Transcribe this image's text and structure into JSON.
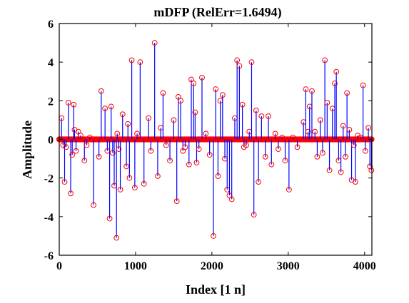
{
  "chart_data": {
    "type": "stem",
    "title": "mDFP (RelErr=1.6494)",
    "xlabel": "Index [1 n]",
    "ylabel": "Amplitude",
    "xlim": [
      0,
      4096
    ],
    "ylim": [
      -6,
      6
    ],
    "xticks": [
      0,
      1000,
      2000,
      3000,
      4000
    ],
    "yticks": [
      -6,
      -4,
      -2,
      0,
      2,
      4,
      6
    ],
    "grid": false,
    "colors": {
      "stem": "#0000ff",
      "marker": "#ff0000",
      "axis": "#000000"
    },
    "series": [
      {
        "marker": "circle",
        "points": [
          [
            30,
            1.1
          ],
          [
            50,
            -0.3
          ],
          [
            70,
            -2.2
          ],
          [
            90,
            -0.4
          ],
          [
            120,
            1.9
          ],
          [
            150,
            -2.8
          ],
          [
            170,
            -0.8
          ],
          [
            190,
            1.8
          ],
          [
            200,
            0.5
          ],
          [
            220,
            -0.6
          ],
          [
            250,
            0.4
          ],
          [
            280,
            0.2
          ],
          [
            330,
            -1.1
          ],
          [
            360,
            -0.3
          ],
          [
            400,
            0.1
          ],
          [
            450,
            -3.4
          ],
          [
            520,
            -0.9
          ],
          [
            550,
            2.5
          ],
          [
            600,
            1.6
          ],
          [
            630,
            -0.6
          ],
          [
            660,
            -4.1
          ],
          [
            680,
            1.7
          ],
          [
            700,
            -0.7
          ],
          [
            720,
            -2.4
          ],
          [
            750,
            -5.1
          ],
          [
            760,
            0.3
          ],
          [
            780,
            -0.5
          ],
          [
            800,
            -2.6
          ],
          [
            830,
            1.3
          ],
          [
            880,
            -1.4
          ],
          [
            900,
            0.8
          ],
          [
            920,
            -2.0
          ],
          [
            950,
            4.1
          ],
          [
            990,
            -2.5
          ],
          [
            1020,
            0.3
          ],
          [
            1060,
            4.0
          ],
          [
            1110,
            -2.3
          ],
          [
            1170,
            1.1
          ],
          [
            1200,
            -0.6
          ],
          [
            1250,
            5.0
          ],
          [
            1290,
            -1.9
          ],
          [
            1330,
            0.6
          ],
          [
            1360,
            2.4
          ],
          [
            1400,
            -0.3
          ],
          [
            1450,
            -1.1
          ],
          [
            1500,
            1.0
          ],
          [
            1540,
            -3.2
          ],
          [
            1560,
            2.2
          ],
          [
            1590,
            2.0
          ],
          [
            1620,
            -0.6
          ],
          [
            1650,
            -0.4
          ],
          [
            1700,
            -1.3
          ],
          [
            1730,
            3.1
          ],
          [
            1760,
            2.9
          ],
          [
            1780,
            1.4
          ],
          [
            1800,
            -1.2
          ],
          [
            1830,
            -0.5
          ],
          [
            1870,
            3.2
          ],
          [
            1920,
            0.3
          ],
          [
            1970,
            -0.8
          ],
          [
            2020,
            -5.0
          ],
          [
            2050,
            2.6
          ],
          [
            2080,
            -1.9
          ],
          [
            2110,
            2.0
          ],
          [
            2140,
            2.3
          ],
          [
            2170,
            -1.0
          ],
          [
            2200,
            -2.6
          ],
          [
            2230,
            -2.9
          ],
          [
            2260,
            -3.1
          ],
          [
            2300,
            1.1
          ],
          [
            2330,
            4.1
          ],
          [
            2360,
            3.8
          ],
          [
            2400,
            1.8
          ],
          [
            2420,
            -0.4
          ],
          [
            2450,
            -0.3
          ],
          [
            2490,
            0.4
          ],
          [
            2520,
            4.0
          ],
          [
            2550,
            -3.9
          ],
          [
            2580,
            1.5
          ],
          [
            2610,
            -2.2
          ],
          [
            2650,
            1.2
          ],
          [
            2700,
            -0.9
          ],
          [
            2740,
            1.2
          ],
          [
            2780,
            -1.3
          ],
          [
            2830,
            0.3
          ],
          [
            2870,
            -0.5
          ],
          [
            2920,
            0.1
          ],
          [
            2960,
            -1.1
          ],
          [
            3010,
            -2.6
          ],
          [
            3060,
            0.1
          ],
          [
            3120,
            -0.4
          ],
          [
            3200,
            0.9
          ],
          [
            3230,
            2.6
          ],
          [
            3260,
            0.4
          ],
          [
            3280,
            1.7
          ],
          [
            3310,
            2.5
          ],
          [
            3350,
            0.4
          ],
          [
            3380,
            -0.9
          ],
          [
            3420,
            1.0
          ],
          [
            3450,
            -0.7
          ],
          [
            3480,
            4.1
          ],
          [
            3510,
            1.9
          ],
          [
            3540,
            -1.6
          ],
          [
            3580,
            1.6
          ],
          [
            3610,
            2.9
          ],
          [
            3630,
            3.5
          ],
          [
            3660,
            -1.1
          ],
          [
            3690,
            -1.7
          ],
          [
            3720,
            0.7
          ],
          [
            3750,
            -0.9
          ],
          [
            3770,
            2.4
          ],
          [
            3800,
            0.5
          ],
          [
            3830,
            -2.1
          ],
          [
            3860,
            -0.3
          ],
          [
            3880,
            -2.2
          ],
          [
            3910,
            0.2
          ],
          [
            3950,
            0.1
          ],
          [
            3980,
            2.8
          ],
          [
            4010,
            -0.6
          ],
          [
            4050,
            0.6
          ],
          [
            4070,
            -1.4
          ],
          [
            4090,
            -1.6
          ]
        ]
      }
    ]
  }
}
